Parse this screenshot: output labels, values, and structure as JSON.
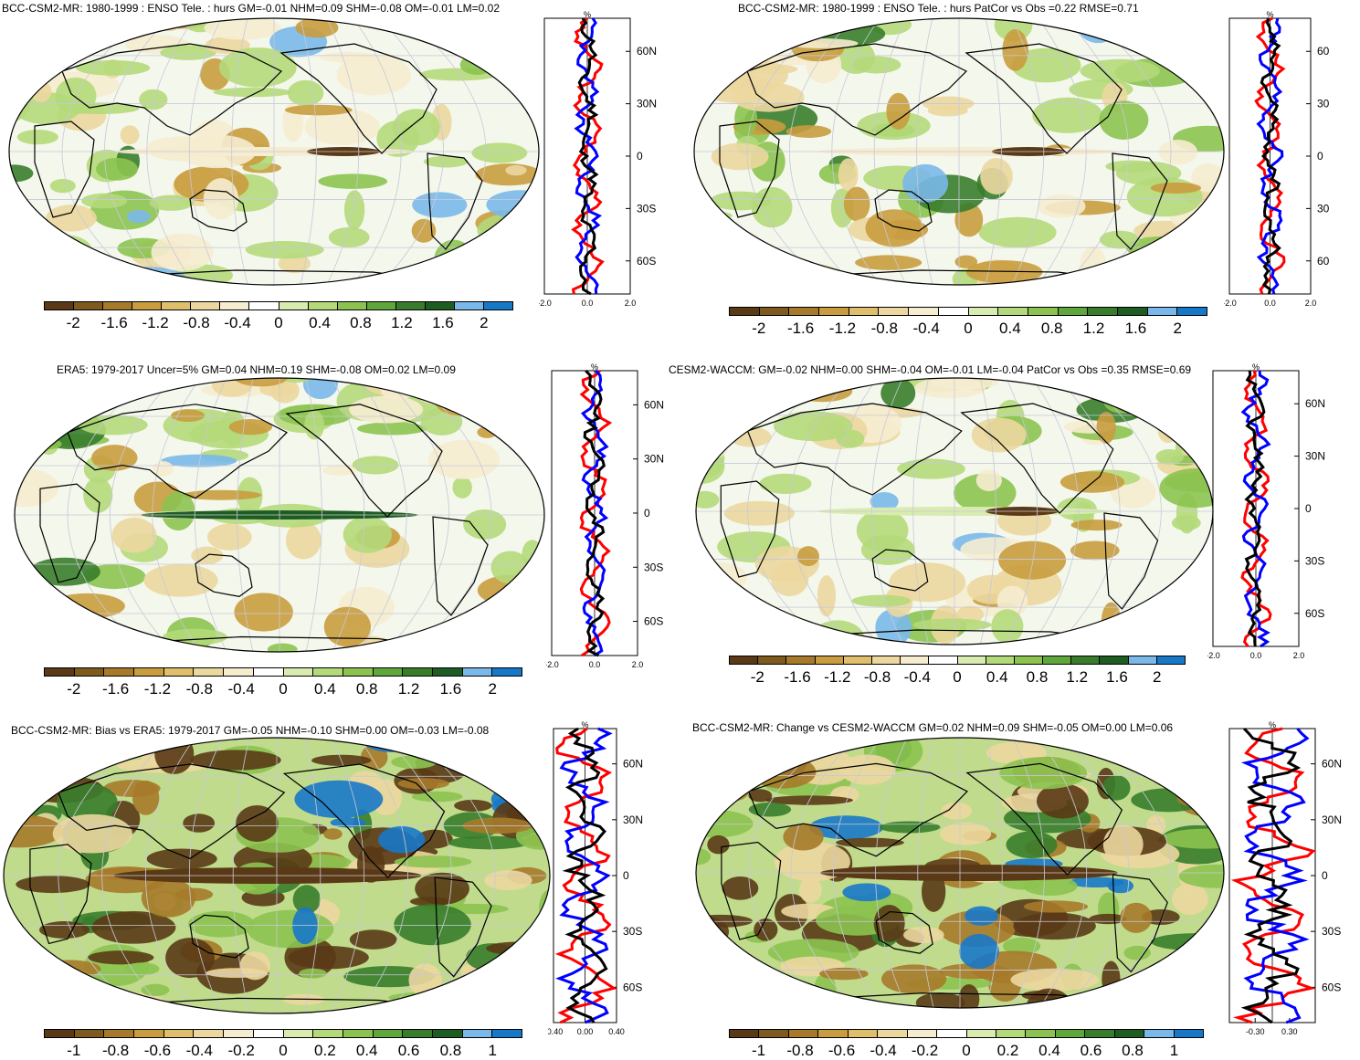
{
  "palettes": {
    "brown_blue_14": [
      "#5a3a16",
      "#7e5a1f",
      "#a67a2a",
      "#c99c3f",
      "#dfbf6c",
      "#ecd7a0",
      "#f6ecd0",
      "#ffffff",
      "#d8ecb0",
      "#b4d97a",
      "#8cc350",
      "#5fa63c",
      "#397d2c",
      "#1e5d22",
      "#7ab8ea",
      "#1878c8"
    ],
    "profile_colors": {
      "obs": "#ff0000",
      "model": "#0000ff",
      "mean": "#000000"
    }
  },
  "panels": [
    {
      "id": "p1",
      "title": "BCC-CSM2-MR: 1980-1999 : ENSO Tele. : hurs GM=-0.01 NHM=0.09 SHM=-0.08 OM=-0.01 LM=0.02",
      "colorbar_labels": [
        "-2",
        "-1.6",
        "-1.2",
        "-0.8",
        "-0.4",
        "0",
        "0.4",
        "0.8",
        "1.2",
        "1.6",
        "2"
      ],
      "profile": {
        "units": "%",
        "xticks": [
          "-2.0",
          "0.0",
          "2.0"
        ],
        "yticks": [
          "60N",
          "30N",
          "0",
          "30S",
          "60S"
        ]
      }
    },
    {
      "id": "p2",
      "title": "BCC-CSM2-MR: 1980-1999 : ENSO Tele. : hurs PatCor vs Obs =0.22 RMSE=0.71",
      "colorbar_labels": [
        "-2",
        "-1.6",
        "-1.2",
        "-0.8",
        "-0.4",
        "0",
        "0.4",
        "0.8",
        "1.2",
        "1.6",
        "2"
      ],
      "profile": {
        "units": "%",
        "xticks": [
          "-2.0",
          "0.0",
          "2.0"
        ],
        "yticks": [
          "60",
          "30",
          "0",
          "30",
          "60"
        ]
      }
    },
    {
      "id": "p3",
      "title": "ERA5: 1979-2017 Uncer=5% GM=0.04 NHM=0.19 SHM=-0.08 OM=0.02 LM=0.09",
      "colorbar_labels": [
        "-2",
        "-1.6",
        "-1.2",
        "-0.8",
        "-0.4",
        "0",
        "0.4",
        "0.8",
        "1.2",
        "1.6",
        "2"
      ],
      "profile": {
        "units": "%",
        "xticks": [
          "-2.0",
          "0.0",
          "2.0"
        ],
        "yticks": [
          "60N",
          "30N",
          "0",
          "30S",
          "60S"
        ]
      }
    },
    {
      "id": "p4",
      "title": "CESM2-WACCM: GM=-0.02 NHM=0.00 SHM=-0.04 OM=-0.01 LM=-0.04 PatCor vs Obs =0.35 RMSE=0.69",
      "colorbar_labels": [
        "-2",
        "-1.6",
        "-1.2",
        "-0.8",
        "-0.4",
        "0",
        "0.4",
        "0.8",
        "1.2",
        "1.6",
        "2"
      ],
      "profile": {
        "units": "%",
        "xticks": [
          "-2.0",
          "0.0",
          "2.0"
        ],
        "yticks": [
          "60N",
          "30N",
          "0",
          "30S",
          "60S"
        ]
      }
    },
    {
      "id": "p5",
      "title": "BCC-CSM2-MR: Bias vs ERA5: 1979-2017 GM=-0.05 NHM=-0.10 SHM=0.00 OM=-0.03 LM=-0.08",
      "colorbar_labels": [
        "-1",
        "-0.8",
        "-0.6",
        "-0.4",
        "-0.2",
        "0",
        "0.2",
        "0.4",
        "0.6",
        "0.8",
        "1"
      ],
      "profile": {
        "units": "%",
        "xticks": [
          "-0.40",
          "0.00",
          "0.40"
        ],
        "yticks": [
          "60N",
          "30N",
          "0",
          "30S",
          "60S"
        ]
      }
    },
    {
      "id": "p6",
      "title": "BCC-CSM2-MR: Change vs CESM2-WACCM GM=0.02 NHM=0.09 SHM=-0.05 OM=0.00 LM=0.06",
      "colorbar_labels": [
        "-1",
        "-0.8",
        "-0.6",
        "-0.4",
        "-0.2",
        "0",
        "0.2",
        "0.4",
        "0.6",
        "0.8",
        "1"
      ],
      "profile": {
        "units": "%",
        "xticks": [
          "-0.30",
          "0.30"
        ],
        "yticks": [
          "60N",
          "30N",
          "0",
          "30S",
          "60S"
        ]
      }
    }
  ]
}
